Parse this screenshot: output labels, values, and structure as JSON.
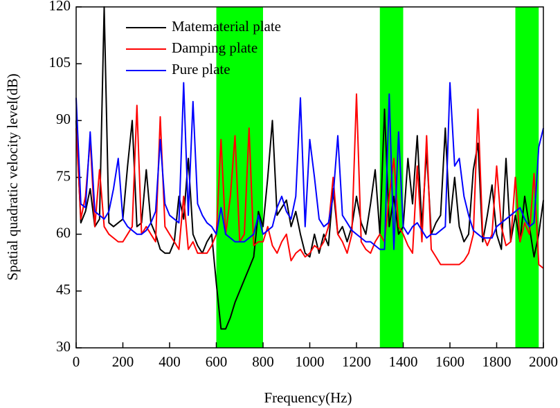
{
  "chart_data": {
    "type": "line",
    "xlabel": "Frequency(Hz)",
    "ylabel": "Spatial quadratic velocity level(dB)",
    "x": [
      0,
      20,
      40,
      60,
      80,
      100,
      120,
      140,
      160,
      180,
      200,
      220,
      240,
      260,
      280,
      300,
      320,
      340,
      360,
      380,
      400,
      420,
      440,
      460,
      480,
      500,
      520,
      540,
      560,
      580,
      600,
      620,
      640,
      660,
      680,
      700,
      720,
      740,
      760,
      780,
      800,
      820,
      840,
      860,
      880,
      900,
      920,
      940,
      960,
      980,
      1000,
      1020,
      1040,
      1060,
      1080,
      1100,
      1120,
      1140,
      1160,
      1180,
      1200,
      1220,
      1240,
      1260,
      1280,
      1300,
      1320,
      1340,
      1360,
      1380,
      1400,
      1420,
      1440,
      1460,
      1480,
      1500,
      1520,
      1540,
      1560,
      1580,
      1600,
      1620,
      1640,
      1660,
      1680,
      1700,
      1720,
      1740,
      1760,
      1780,
      1800,
      1820,
      1840,
      1860,
      1880,
      1900,
      1920,
      1940,
      1960,
      1980,
      2000
    ],
    "series": [
      {
        "name": "Matematerial plate",
        "color": "#000000",
        "values": [
          90,
          63,
          66,
          72,
          62,
          64,
          120,
          63,
          62,
          63,
          64,
          78,
          90,
          62,
          63,
          77,
          63,
          60,
          56,
          55,
          55,
          58,
          70,
          64,
          80,
          60,
          57,
          55,
          58,
          60,
          47,
          35,
          35,
          38,
          42,
          45,
          48,
          51,
          54,
          66,
          62,
          75,
          90,
          65,
          67,
          69,
          62,
          66,
          60,
          55,
          54,
          60,
          55,
          60,
          57,
          72,
          60,
          62,
          58,
          62,
          70,
          63,
          60,
          68,
          77,
          60,
          93,
          62,
          70,
          60,
          62,
          80,
          68,
          86,
          62,
          82,
          60,
          63,
          65,
          88,
          63,
          75,
          62,
          58,
          60,
          77,
          84,
          58,
          65,
          73,
          60,
          56,
          80,
          58,
          65,
          58,
          70,
          62,
          54,
          60,
          69
        ]
      },
      {
        "name": "Damping plate",
        "color": "#ff0000",
        "values": [
          88,
          64,
          70,
          85,
          62,
          77,
          62,
          60,
          59,
          58,
          58,
          60,
          62,
          94,
          60,
          62,
          60,
          58,
          91,
          62,
          60,
          58,
          56,
          70,
          56,
          58,
          55,
          55,
          55,
          57,
          60,
          85,
          60,
          70,
          86,
          58,
          60,
          88,
          57,
          58,
          58,
          62,
          57,
          55,
          58,
          60,
          53,
          55,
          56,
          54,
          55,
          57,
          56,
          58,
          62,
          75,
          60,
          58,
          55,
          60,
          97,
          58,
          56,
          55,
          58,
          60,
          58,
          70,
          80,
          62,
          60,
          57,
          55,
          78,
          58,
          86,
          56,
          54,
          52,
          52,
          52,
          52,
          52,
          53,
          55,
          60,
          93,
          60,
          57,
          60,
          78,
          62,
          57,
          58,
          75,
          58,
          63,
          60,
          76,
          52,
          51
        ]
      },
      {
        "name": "Pure plate",
        "color": "#0000ff",
        "values": [
          96,
          68,
          67,
          87,
          66,
          65,
          64,
          66,
          72,
          80,
          64,
          62,
          61,
          60,
          60,
          61,
          63,
          66,
          85,
          68,
          65,
          64,
          63,
          100,
          65,
          95,
          68,
          65,
          63,
          62,
          60,
          67,
          60,
          59,
          58,
          58,
          58,
          59,
          60,
          65,
          60,
          61,
          62,
          67,
          70,
          66,
          64,
          70,
          96,
          62,
          85,
          75,
          64,
          62,
          63,
          70,
          86,
          65,
          63,
          61,
          60,
          59,
          58,
          58,
          57,
          56,
          56,
          97,
          56,
          87,
          62,
          60,
          62,
          63,
          61,
          59,
          60,
          60,
          61,
          62,
          100,
          78,
          80,
          70,
          65,
          61,
          60,
          59,
          59,
          59,
          62,
          63,
          64,
          65,
          66,
          67,
          64,
          62,
          63,
          83,
          88
        ]
      }
    ],
    "shaded_ranges": [
      [
        600,
        800
      ],
      [
        1300,
        1400
      ],
      [
        1880,
        1980
      ]
    ],
    "shade_color": "#00ff00",
    "xlim": [
      0,
      2000
    ],
    "xticks": [
      0,
      200,
      400,
      600,
      800,
      1000,
      1200,
      1400,
      1600,
      1800,
      2000
    ],
    "ylim": [
      30,
      120
    ],
    "yticks": [
      30,
      45,
      60,
      75,
      90,
      105,
      120
    ],
    "legend": "upper left"
  }
}
